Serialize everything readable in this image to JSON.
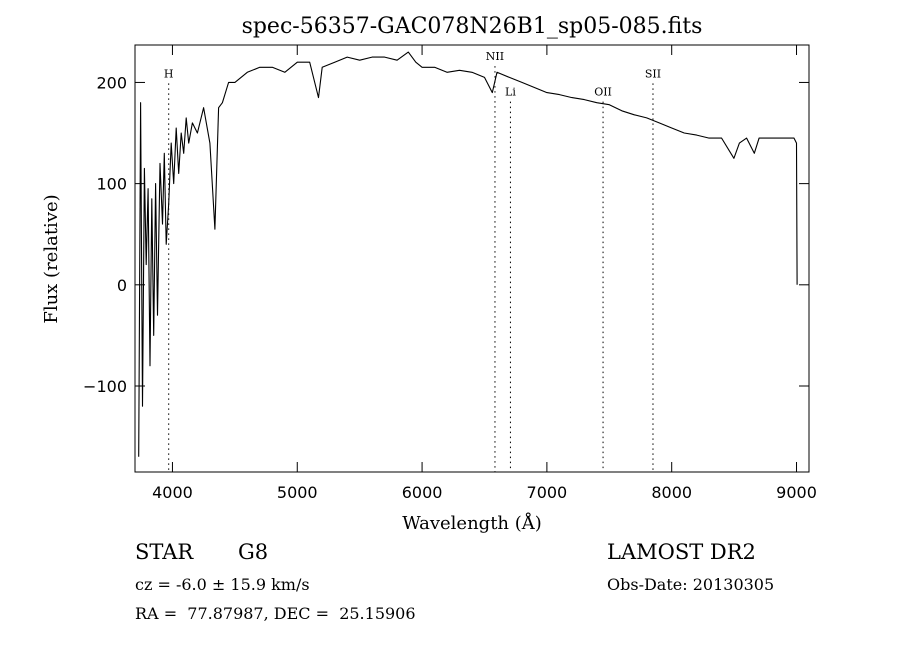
{
  "chart_data": {
    "type": "line",
    "title": "spec-56357-GAC078N26B1_sp05-085.fits",
    "xlabel": "Wavelength (Å)",
    "ylabel": "Flux (relative)",
    "xlim": [
      3700,
      9100
    ],
    "ylim": [
      -185,
      237
    ],
    "xticks": [
      4000,
      5000,
      6000,
      7000,
      8000,
      9000
    ],
    "yticks": [
      -100,
      0,
      100,
      200
    ],
    "grid": false,
    "lines": [
      {
        "label": "H",
        "x": 3970,
        "label_y": 205
      },
      {
        "label": "NII",
        "x": 6584,
        "label_y": 222
      },
      {
        "label": "Li",
        "x": 6708,
        "label_y": 187
      },
      {
        "label": "OII",
        "x": 7450,
        "label_y": 187
      },
      {
        "label": "SII",
        "x": 7850,
        "label_y": 205
      }
    ],
    "series": [
      {
        "x": [
          3730,
          3745,
          3760,
          3775,
          3790,
          3805,
          3820,
          3835,
          3850,
          3865,
          3880,
          3900,
          3920,
          3935,
          3950,
          3970,
          3990,
          4010,
          4030,
          4050,
          4070,
          4090,
          4110,
          4130,
          4160,
          4200,
          4250,
          4300,
          4340,
          4370,
          4400,
          4450,
          4500,
          4600,
          4700,
          4800,
          4900,
          5000,
          5100,
          5170,
          5200,
          5300,
          5400,
          5500,
          5600,
          5700,
          5800,
          5890,
          5950,
          6000,
          6100,
          6200,
          6300,
          6400,
          6500,
          6563,
          6600,
          6700,
          6800,
          6900,
          7000,
          7100,
          7200,
          7300,
          7400,
          7500,
          7600,
          7700,
          7800,
          7900,
          8000,
          8100,
          8200,
          8300,
          8400,
          8498,
          8542,
          8600,
          8662,
          8700,
          8800,
          8900,
          8980,
          9000,
          9005
        ],
        "y": [
          -170,
          180,
          -120,
          115,
          20,
          95,
          -80,
          85,
          -50,
          100,
          -30,
          120,
          60,
          130,
          40,
          80,
          140,
          100,
          155,
          110,
          150,
          130,
          165,
          140,
          160,
          150,
          175,
          140,
          55,
          175,
          180,
          200,
          200,
          210,
          215,
          215,
          210,
          220,
          220,
          185,
          215,
          220,
          225,
          222,
          225,
          225,
          222,
          230,
          220,
          215,
          215,
          210,
          212,
          210,
          205,
          190,
          210,
          205,
          200,
          195,
          190,
          188,
          185,
          183,
          180,
          178,
          172,
          168,
          165,
          160,
          155,
          150,
          148,
          145,
          145,
          125,
          140,
          145,
          130,
          145,
          145,
          145,
          145,
          140,
          0
        ]
      }
    ]
  },
  "info": {
    "obj_type": "STAR",
    "subclass": "G8",
    "survey": "LAMOST DR2",
    "cz": "cz = -6.0 ± 15.9 km/s",
    "obs_date": "Obs-Date: 20130305",
    "radec": "RA =  77.87987, DEC =  25.15906"
  }
}
